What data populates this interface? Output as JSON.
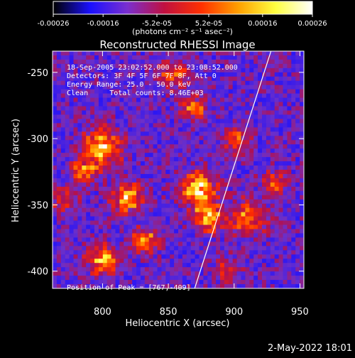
{
  "colorbar": {
    "tick_labels": [
      "-0.00026",
      "-0.00016",
      "-5.2e-05",
      "5.2e-05",
      "0.00016",
      "0.00026"
    ],
    "tick_values": [
      -0.00026,
      -0.00016,
      -5.2e-05,
      5.2e-05,
      0.00016,
      0.00026
    ],
    "range": [
      -0.00026,
      0.00026
    ],
    "units_label": "(photons cm⁻² s⁻¹ asec⁻²)",
    "colors": [
      "#000000",
      "#1a10ff",
      "#7a2fcf",
      "#c01040",
      "#ff3000",
      "#ffa000",
      "#ffff40",
      "#ffffff"
    ]
  },
  "chart_data": {
    "type": "heatmap",
    "title": "Reconstructed RHESSI Image",
    "xlabel": "Heliocentric X (arcsec)",
    "ylabel": "Heliocentric Y (arcsec)",
    "xlim": [
      762,
      953
    ],
    "ylim": [
      -413,
      -234
    ],
    "x_ticks": [
      800,
      850,
      900,
      950
    ],
    "y_ticks": [
      -250,
      -300,
      -350,
      -400
    ],
    "x_tick_labels": [
      "800",
      "850",
      "900",
      "950"
    ],
    "y_tick_labels": [
      "-250",
      "-300",
      "-350",
      "-400"
    ],
    "annotations": [
      "18-Sep-2005 23:02:52.000 to 23:08:52.000",
      "Detectors: 3F 4F 5F 6F 7F 8F, Att 0",
      "Energy Range: 25.0 - 50.0 keV",
      "Clean     Total counts: 8.46E+03"
    ],
    "peak_label": "Position of Peak = [767,-409]",
    "peak_position": [
      767,
      -409
    ],
    "limb_line": {
      "x": [
        870,
        928
      ],
      "y": [
        -413,
        -234
      ]
    },
    "grid": false
  },
  "footer": {
    "timestamp": "2-May-2022 18:01"
  }
}
